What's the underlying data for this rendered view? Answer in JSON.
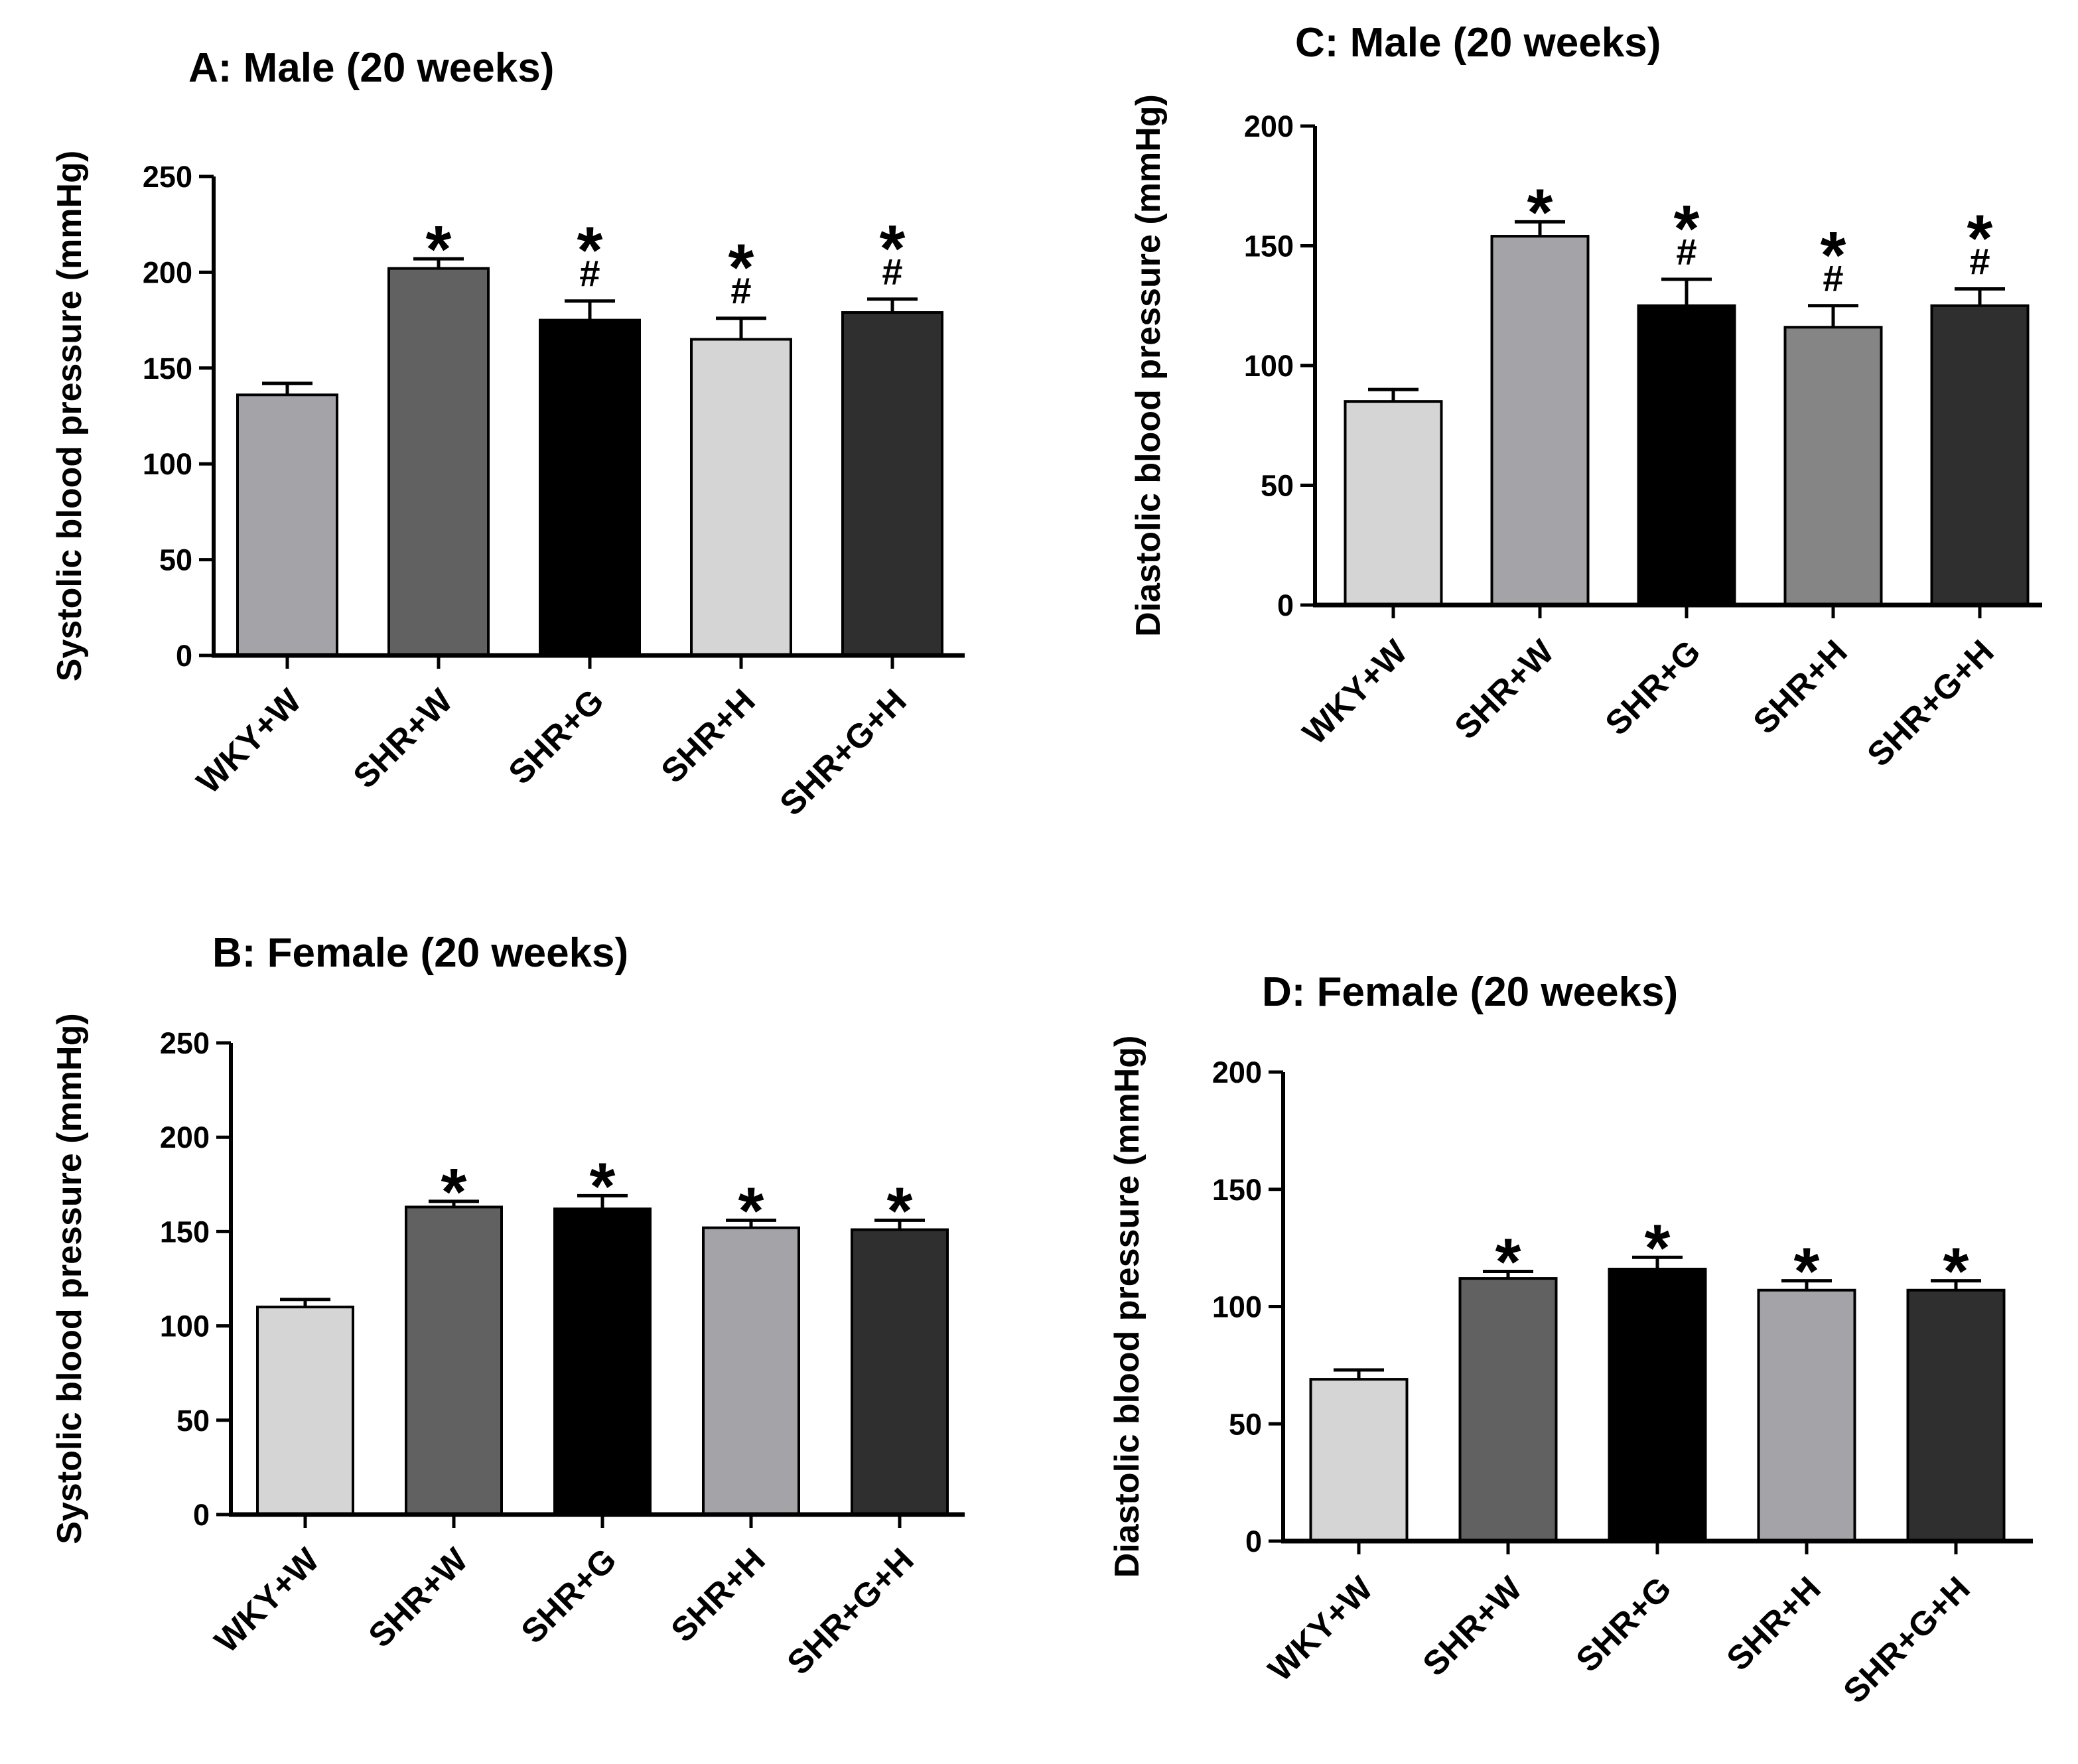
{
  "chart_data": [
    {
      "type": "bar",
      "title": "A: Male (20 weeks)",
      "xlabel": "",
      "ylabel": "Systolic blood pressure (mmHg)",
      "ylim": [
        0,
        250
      ],
      "yticks": [
        0,
        50,
        100,
        150,
        200,
        250
      ],
      "categories": [
        "WKY+W",
        "SHR+W",
        "SHR+G",
        "SHR+H",
        "SHR+G+H"
      ],
      "values": [
        136,
        202,
        175,
        165,
        179
      ],
      "errors": [
        6,
        5,
        10,
        11,
        7
      ],
      "colors": [
        "#a4a3a8",
        "#616161",
        "#000000",
        "#d5d5d5",
        "#2f2f2f"
      ],
      "annotations": [
        [],
        [
          "*"
        ],
        [
          "*",
          "#"
        ],
        [
          "*",
          "#"
        ],
        [
          "*",
          "#"
        ]
      ]
    },
    {
      "type": "bar",
      "title": "B: Female (20 weeks)",
      "xlabel": "",
      "ylabel": "Systolic blood pressure (mmHg)",
      "ylim": [
        0,
        250
      ],
      "yticks": [
        0,
        50,
        100,
        150,
        200,
        250
      ],
      "categories": [
        "WKY+W",
        "SHR+W",
        "SHR+G",
        "SHR+H",
        "SHR+G+H"
      ],
      "values": [
        110,
        163,
        162,
        152,
        151
      ],
      "errors": [
        4,
        3,
        7,
        4,
        5
      ],
      "colors": [
        "#d5d5d5",
        "#616161",
        "#000000",
        "#a4a3a8",
        "#2f2f2f"
      ],
      "annotations": [
        [],
        [
          "*"
        ],
        [
          "*"
        ],
        [
          "*"
        ],
        [
          "*"
        ]
      ]
    },
    {
      "type": "bar",
      "title": "C: Male (20 weeks)",
      "xlabel": "",
      "ylabel": "Diastolic blood pressure (mmHg)",
      "ylim": [
        0,
        200
      ],
      "yticks": [
        0,
        50,
        100,
        150,
        200
      ],
      "categories": [
        "WKY+W",
        "SHR+W",
        "SHR+G",
        "SHR+H",
        "SHR+G+H"
      ],
      "values": [
        85,
        154,
        125,
        116,
        125
      ],
      "errors": [
        5,
        6,
        11,
        9,
        7
      ],
      "colors": [
        "#d5d5d5",
        "#a4a3a8",
        "#000000",
        "#858585",
        "#2f2f2f"
      ],
      "annotations": [
        [],
        [
          "*"
        ],
        [
          "*",
          "#"
        ],
        [
          "*",
          "#"
        ],
        [
          "*",
          "#"
        ]
      ]
    },
    {
      "type": "bar",
      "title": "D: Female (20 weeks)",
      "xlabel": "",
      "ylabel": "Diastolic blood pressure (mmHg)",
      "ylim": [
        0,
        200
      ],
      "yticks": [
        0,
        50,
        100,
        150,
        200
      ],
      "categories": [
        "WKY+W",
        "SHR+W",
        "SHR+G",
        "SHR+H",
        "SHR+G+H"
      ],
      "values": [
        69,
        112,
        116,
        107,
        107
      ],
      "errors": [
        4,
        3,
        5,
        4,
        4
      ],
      "colors": [
        "#d5d5d5",
        "#616161",
        "#000000",
        "#a4a3a8",
        "#2f2f2f"
      ],
      "annotations": [
        [],
        [
          "*"
        ],
        [
          "*"
        ],
        [
          "*"
        ],
        [
          "*"
        ]
      ]
    }
  ]
}
